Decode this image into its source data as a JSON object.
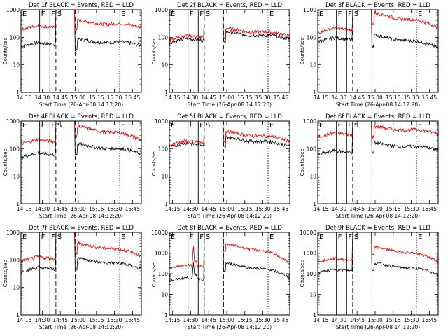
{
  "figure": {
    "common_xlabel": "Start Time (26-Apr-08 14:12:20)",
    "common_ylabel": "Counts/sec"
  },
  "chart_data": [
    {
      "type": "line",
      "title": "Det 1f BLACK = Events, RED = LLD",
      "xlabel": "Start Time (26-Apr-08 14:12:20)",
      "ylabel": "Counts/sec",
      "x_ticks": [
        "14:15",
        "14:30",
        "14:45",
        "15:00",
        "15:15",
        "15:30",
        "15:45"
      ],
      "x_tick_minutes": [
        2.67,
        17.67,
        32.67,
        47.67,
        62.67,
        77.67,
        92.67
      ],
      "xlim": [
        0,
        100
      ],
      "ylim": [
        1,
        1000
      ],
      "y_ticks": [
        "1",
        "10",
        "100",
        "1000"
      ],
      "markers": [
        {
          "label": "E",
          "minute": 0,
          "style": "solid"
        },
        {
          "label": "F",
          "minute": 15.5,
          "style": "solid"
        },
        {
          "label": "F",
          "minute": 24,
          "style": "solid"
        },
        {
          "label": "S",
          "minute": 29,
          "style": "dashed"
        },
        {
          "label": "",
          "minute": 45,
          "style": "dashed"
        },
        {
          "label": "E",
          "minute": 82,
          "style": "dotted"
        }
      ],
      "series": [
        {
          "name": "Events",
          "color": "#000000",
          "pre_level": 60,
          "post_level": 80,
          "end_level": 55,
          "spike": 0,
          "saturate": true
        },
        {
          "name": "LLD",
          "color": "#e00000",
          "pre_level": 250,
          "post_level": 380,
          "end_level": 250,
          "spike": 0,
          "saturate": true
        }
      ]
    },
    {
      "type": "line",
      "title": "Det 2f BLACK = Events, RED = LLD",
      "xlabel": "Start Time (26-Apr-08 14:12:20)",
      "ylabel": "Counts/sec",
      "x_ticks": [
        "14:15",
        "14:30",
        "14:45",
        "15:00",
        "15:15",
        "15:30",
        "15:45"
      ],
      "x_tick_minutes": [
        2.67,
        17.67,
        32.67,
        47.67,
        62.67,
        77.67,
        92.67
      ],
      "xlim": [
        0,
        100
      ],
      "ylim": [
        1,
        1000
      ],
      "y_ticks": [
        "1",
        "10",
        "100",
        "1000"
      ],
      "markers": [
        {
          "label": "E",
          "minute": 0,
          "style": "solid"
        },
        {
          "label": "F",
          "minute": 15.5,
          "style": "solid"
        },
        {
          "label": "F",
          "minute": 24,
          "style": "solid"
        },
        {
          "label": "S",
          "minute": 29,
          "style": "dashed"
        },
        {
          "label": "",
          "minute": 45,
          "style": "dashed"
        },
        {
          "label": "E",
          "minute": 82,
          "style": "dotted"
        }
      ],
      "series": [
        {
          "name": "Events",
          "color": "#000000",
          "pre_level": 85,
          "post_level": 150,
          "end_level": 90,
          "spike": 0,
          "saturate": true
        },
        {
          "name": "LLD",
          "color": "#e00000",
          "pre_level": 110,
          "post_level": 200,
          "end_level": 120,
          "spike": 0,
          "saturate": true
        }
      ]
    },
    {
      "type": "line",
      "title": "Det 3f BLACK = Events, RED = LLD",
      "xlabel": "Start Time (26-Apr-08 14:12:20)",
      "ylabel": "Counts/sec",
      "x_ticks": [
        "14:15",
        "14:30",
        "14:45",
        "15:00",
        "15:15",
        "15:30",
        "15:45"
      ],
      "x_tick_minutes": [
        2.67,
        17.67,
        32.67,
        47.67,
        62.67,
        77.67,
        92.67
      ],
      "xlim": [
        0,
        100
      ],
      "ylim": [
        1,
        1000
      ],
      "y_ticks": [
        "1",
        "10",
        "100",
        "1000"
      ],
      "markers": [
        {
          "label": "E",
          "minute": 0,
          "style": "solid"
        },
        {
          "label": "F",
          "minute": 15.5,
          "style": "solid"
        },
        {
          "label": "F",
          "minute": 24,
          "style": "solid"
        },
        {
          "label": "S",
          "minute": 29,
          "style": "dashed"
        },
        {
          "label": "",
          "minute": 45,
          "style": "dashed"
        },
        {
          "label": "E",
          "minute": 82,
          "style": "dotted"
        }
      ],
      "series": [
        {
          "name": "Events",
          "color": "#000000",
          "pre_level": 90,
          "post_level": 110,
          "end_level": 45,
          "spike": 0,
          "saturate": true
        },
        {
          "name": "LLD",
          "color": "#e00000",
          "pre_level": 200,
          "post_level": 700,
          "end_level": 240,
          "spike": 0,
          "saturate": true
        }
      ]
    },
    {
      "type": "line",
      "title": "Det 4f BLACK = Events, RED = LLD",
      "xlabel": "Start Time (26-Apr-08 14:12:20)",
      "ylabel": "Counts/sec",
      "x_ticks": [
        "14:15",
        "14:30",
        "14:45",
        "15:00",
        "15:15",
        "15:30",
        "15:45"
      ],
      "x_tick_minutes": [
        2.67,
        17.67,
        32.67,
        47.67,
        62.67,
        77.67,
        92.67
      ],
      "xlim": [
        0,
        100
      ],
      "ylim": [
        1,
        1000
      ],
      "y_ticks": [
        "1",
        "10",
        "100",
        "1000"
      ],
      "markers": [
        {
          "label": "E",
          "minute": 0,
          "style": "solid"
        },
        {
          "label": "F",
          "minute": 15.5,
          "style": "solid"
        },
        {
          "label": "F",
          "minute": 24,
          "style": "solid"
        },
        {
          "label": "S",
          "minute": 29,
          "style": "dashed"
        },
        {
          "label": "",
          "minute": 45,
          "style": "dashed"
        },
        {
          "label": "E",
          "minute": 82,
          "style": "dotted"
        }
      ],
      "series": [
        {
          "name": "Events",
          "color": "#000000",
          "pre_level": 65,
          "post_level": 140,
          "end_level": 70,
          "spike": 0,
          "saturate": true
        },
        {
          "name": "LLD",
          "color": "#e00000",
          "pre_level": 200,
          "post_level": 600,
          "end_level": 220,
          "spike": 0,
          "saturate": true
        }
      ]
    },
    {
      "type": "line",
      "title": "Det 5f BLACK = Events, RED = LLD",
      "xlabel": "Start Time (26-Apr-08 14:12:20)",
      "ylabel": "Counts/sec",
      "x_ticks": [
        "14:15",
        "14:30",
        "14:45",
        "15:00",
        "15:15",
        "15:30",
        "15:45"
      ],
      "x_tick_minutes": [
        2.67,
        17.67,
        32.67,
        47.67,
        62.67,
        77.67,
        92.67
      ],
      "xlim": [
        0,
        100
      ],
      "ylim": [
        1,
        1000
      ],
      "y_ticks": [
        "1",
        "10",
        "100",
        "1000"
      ],
      "markers": [
        {
          "label": "E",
          "minute": 0,
          "style": "solid"
        },
        {
          "label": "F",
          "minute": 15.5,
          "style": "solid"
        },
        {
          "label": "F",
          "minute": 24,
          "style": "solid"
        },
        {
          "label": "S",
          "minute": 29,
          "style": "dashed"
        },
        {
          "label": "",
          "minute": 45,
          "style": "dashed"
        },
        {
          "label": "E",
          "minute": 82,
          "style": "dotted"
        }
      ],
      "series": [
        {
          "name": "Events",
          "color": "#000000",
          "pre_level": 150,
          "post_level": 250,
          "end_level": 130,
          "spike": 0,
          "saturate": true
        },
        {
          "name": "LLD",
          "color": "#e00000",
          "pre_level": 180,
          "post_level": 400,
          "end_level": 200,
          "spike": 0,
          "saturate": true
        }
      ]
    },
    {
      "type": "line",
      "title": "Det 6f BLACK = Events, RED = LLD",
      "xlabel": "Start Time (26-Apr-08 14:12:20)",
      "ylabel": "Counts/sec",
      "x_ticks": [
        "14:15",
        "14:30",
        "14:45",
        "15:00",
        "15:15",
        "15:30",
        "15:45"
      ],
      "x_tick_minutes": [
        2.67,
        17.67,
        32.67,
        47.67,
        62.67,
        77.67,
        92.67
      ],
      "xlim": [
        0,
        100
      ],
      "ylim": [
        1,
        1000
      ],
      "y_ticks": [
        "1",
        "10",
        "100",
        "1000"
      ],
      "markers": [
        {
          "label": "E",
          "minute": 0,
          "style": "solid"
        },
        {
          "label": "F",
          "minute": 15.5,
          "style": "solid"
        },
        {
          "label": "F",
          "minute": 24,
          "style": "solid"
        },
        {
          "label": "S",
          "minute": 29,
          "style": "dashed"
        },
        {
          "label": "",
          "minute": 45,
          "style": "dashed"
        },
        {
          "label": "E",
          "minute": 82,
          "style": "dotted"
        }
      ],
      "series": [
        {
          "name": "Events",
          "color": "#000000",
          "pre_level": 80,
          "post_level": 150,
          "end_level": 95,
          "spike": 0,
          "saturate": true
        },
        {
          "name": "LLD",
          "color": "#e00000",
          "pre_level": 350,
          "post_level": 600,
          "end_level": 380,
          "spike": 0,
          "saturate": true
        }
      ]
    },
    {
      "type": "line",
      "title": "Det 7f BLACK = Events, RED = LLD",
      "xlabel": "Start Time (26-Apr-08 14:12:20)",
      "ylabel": "Counts/sec",
      "x_ticks": [
        "14:15",
        "14:30",
        "14:45",
        "15:00",
        "15:15",
        "15:30",
        "15:45"
      ],
      "x_tick_minutes": [
        2.67,
        17.67,
        32.67,
        47.67,
        62.67,
        77.67,
        92.67
      ],
      "xlim": [
        0,
        100
      ],
      "ylim": [
        1,
        1000
      ],
      "y_ticks": [
        "1",
        "10",
        "100",
        "1000"
      ],
      "markers": [
        {
          "label": "E",
          "minute": 0,
          "style": "solid"
        },
        {
          "label": "F",
          "minute": 15.5,
          "style": "solid"
        },
        {
          "label": "F",
          "minute": 24,
          "style": "solid"
        },
        {
          "label": "S",
          "minute": 29,
          "style": "dashed"
        },
        {
          "label": "",
          "minute": 45,
          "style": "dashed"
        },
        {
          "label": "E",
          "minute": 82,
          "style": "dotted"
        }
      ],
      "series": [
        {
          "name": "Events",
          "color": "#000000",
          "pre_level": 50,
          "post_level": 110,
          "end_level": 50,
          "spike": 0,
          "saturate": true
        },
        {
          "name": "LLD",
          "color": "#e00000",
          "pre_level": 120,
          "post_level": 380,
          "end_level": 150,
          "spike": 0,
          "saturate": true
        }
      ]
    },
    {
      "type": "line",
      "title": "Det 8f BLACK = Events, RED = LLD",
      "xlabel": "Start Time (26-Apr-08 14:12:20)",
      "ylabel": "Counts/sec",
      "x_ticks": [
        "14:15",
        "14:30",
        "14:45",
        "15:00",
        "15:15",
        "15:30",
        "15:45"
      ],
      "x_tick_minutes": [
        2.67,
        17.67,
        32.67,
        47.67,
        62.67,
        77.67,
        92.67
      ],
      "xlim": [
        0,
        100
      ],
      "ylim": [
        1,
        10000
      ],
      "y_ticks": [
        "1",
        "10",
        "100",
        "1000",
        "10000"
      ],
      "markers": [
        {
          "label": "E",
          "minute": 0,
          "style": "solid"
        },
        {
          "label": "F",
          "minute": 15.5,
          "style": "solid"
        },
        {
          "label": "F",
          "minute": 24,
          "style": "solid"
        },
        {
          "label": "S",
          "minute": 29,
          "style": "dashed"
        },
        {
          "label": "",
          "minute": 45,
          "style": "dashed"
        },
        {
          "label": "E",
          "minute": 82,
          "style": "dotted"
        }
      ],
      "series": [
        {
          "name": "Events",
          "color": "#000000",
          "pre_level": 60,
          "post_level": 300,
          "end_level": 70,
          "spike": 300,
          "saturate": true
        },
        {
          "name": "LLD",
          "color": "#e00000",
          "pre_level": 250,
          "post_level": 2500,
          "end_level": 300,
          "spike": 2000,
          "saturate": true
        }
      ]
    },
    {
      "type": "line",
      "title": "Det 9f BLACK = Events, RED = LLD",
      "xlabel": "Start Time (26-Apr-08 14:12:20)",
      "ylabel": "Counts/sec",
      "x_ticks": [
        "14:15",
        "14:30",
        "14:45",
        "15:00",
        "15:15",
        "15:30",
        "15:45"
      ],
      "x_tick_minutes": [
        2.67,
        17.67,
        32.67,
        47.67,
        62.67,
        77.67,
        92.67
      ],
      "xlim": [
        0,
        100
      ],
      "ylim": [
        1,
        10000
      ],
      "y_ticks": [
        "1",
        "10",
        "100",
        "1000",
        "10000"
      ],
      "markers": [
        {
          "label": "E",
          "minute": 0,
          "style": "solid"
        },
        {
          "label": "F",
          "minute": 15.5,
          "style": "solid"
        },
        {
          "label": "F",
          "minute": 24,
          "style": "solid"
        },
        {
          "label": "S",
          "minute": 29,
          "style": "dashed"
        },
        {
          "label": "",
          "minute": 45,
          "style": "dashed"
        },
        {
          "label": "E",
          "minute": 82,
          "style": "dotted"
        }
      ],
      "series": [
        {
          "name": "Events",
          "color": "#000000",
          "pre_level": 150,
          "post_level": 300,
          "end_level": 100,
          "spike": 0,
          "saturate": true
        },
        {
          "name": "LLD",
          "color": "#e00000",
          "pre_level": 500,
          "post_level": 1800,
          "end_level": 400,
          "spike": 0,
          "saturate": true
        }
      ]
    }
  ]
}
